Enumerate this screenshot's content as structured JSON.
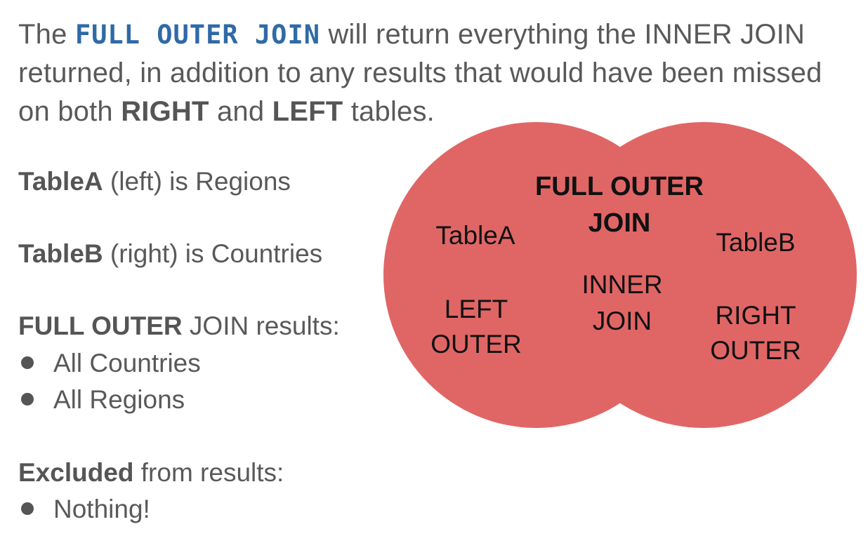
{
  "intro": {
    "prefix": "The",
    "keyword": "FULL OUTER JOIN",
    "mid1": "will return everything the INNER JOIN returned, in addition to any results that would have been missed on both",
    "right": "RIGHT",
    "and": "and",
    "left": "LEFT",
    "suffix": "tables."
  },
  "tables": {
    "a_bold": "TableA",
    "a_rest": "(left) is Regions",
    "b_bold": "TableB",
    "b_rest": "(right) is Countries"
  },
  "results": {
    "heading_bold": "FULL OUTER",
    "heading_rest": "JOIN results:",
    "items": [
      "All Countries",
      "All Regions"
    ]
  },
  "excluded": {
    "heading_bold": "Excluded",
    "heading_rest": "from results:",
    "items": [
      "Nothing!"
    ]
  },
  "venn": {
    "fill_color": "#e06666",
    "title_line1": "FULL OUTER",
    "title_line2": "JOIN",
    "table_a": "TableA",
    "table_b": "TableB",
    "inner_line1": "INNER",
    "inner_line2": "JOIN",
    "left_line1": "LEFT",
    "left_line2": "OUTER",
    "right_line1": "RIGHT",
    "right_line2": "OUTER"
  }
}
